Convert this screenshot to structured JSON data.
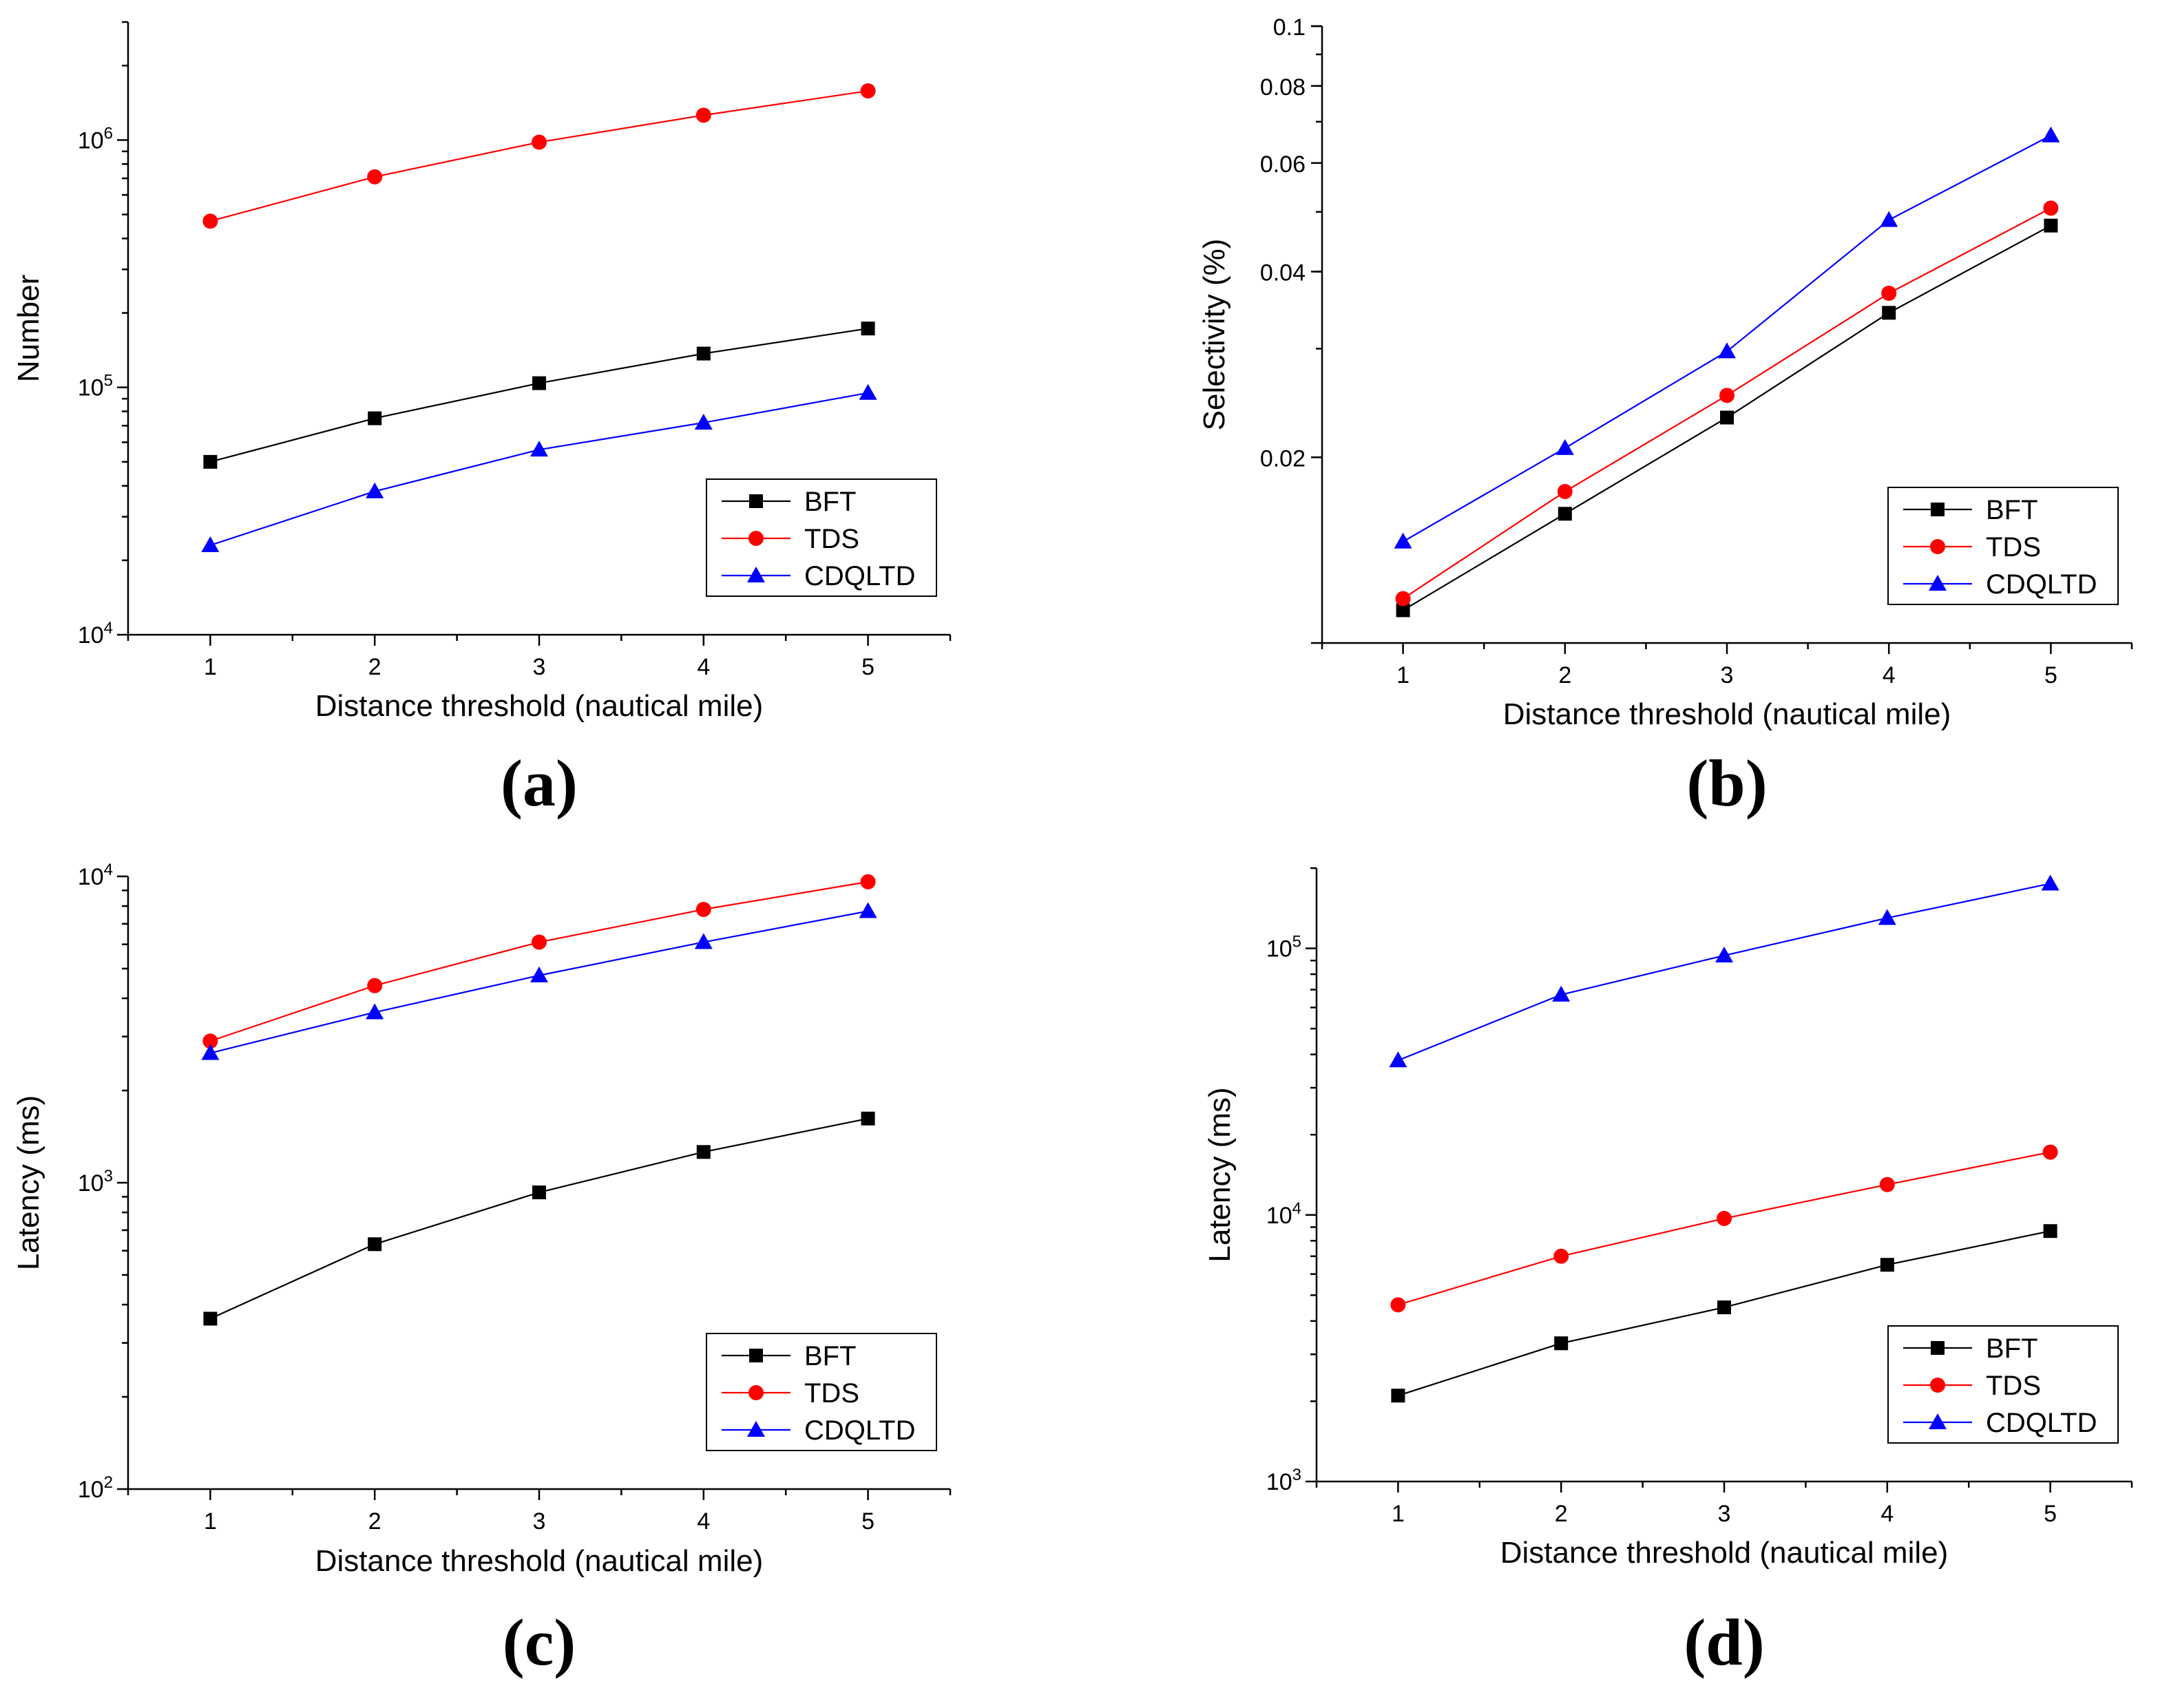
{
  "chart_data": [
    {
      "id": "a",
      "type": "line",
      "panel_label": "(a)",
      "xlabel": "Distance threshold (nautical mile)",
      "ylabel": "Number",
      "yscale": "log",
      "x": [
        1,
        2,
        3,
        4,
        5
      ],
      "xlim": [
        0.5,
        5.5
      ],
      "ylim": [
        10000,
        3000000
      ],
      "yticks": [
        {
          "value": 10000,
          "base": "10",
          "exp": "4"
        },
        {
          "value": 100000,
          "base": "10",
          "exp": "5"
        },
        {
          "value": 1000000,
          "base": "10",
          "exp": "6"
        }
      ],
      "legend_position": "bottom-right",
      "series": [
        {
          "name": "BFT",
          "color": "#000000",
          "marker": "square",
          "values": [
            50000,
            75000,
            104000,
            137000,
            173000
          ]
        },
        {
          "name": "TDS",
          "color": "#ff0000",
          "marker": "circle",
          "values": [
            470000,
            710000,
            980000,
            1260000,
            1580000
          ]
        },
        {
          "name": "CDQLTD",
          "color": "#0000ff",
          "marker": "triangle",
          "values": [
            23000,
            38000,
            56000,
            72000,
            95000
          ]
        }
      ]
    },
    {
      "id": "b",
      "type": "line",
      "panel_label": "(b)",
      "xlabel": "Distance threshold (nautical mile)",
      "ylabel": "Selectivity (%)",
      "yscale": "log",
      "x": [
        1,
        2,
        3,
        4,
        5
      ],
      "xlim": [
        0.5,
        5.5
      ],
      "ylim": [
        0.01,
        0.1
      ],
      "yticks": [
        {
          "value": 0.02,
          "label": "0.02"
        },
        {
          "value": 0.04,
          "label": "0.04"
        },
        {
          "value": 0.06,
          "label": "0.06"
        },
        {
          "value": 0.08,
          "label": "0.08"
        },
        {
          "value": 0.1,
          "label": "0.1"
        }
      ],
      "legend_position": "bottom-right",
      "series": [
        {
          "name": "BFT",
          "color": "#000000",
          "marker": "square",
          "values": [
            0.0113,
            0.0162,
            0.0232,
            0.0343,
            0.0475
          ]
        },
        {
          "name": "TDS",
          "color": "#ff0000",
          "marker": "circle",
          "values": [
            0.0118,
            0.0176,
            0.0252,
            0.0369,
            0.0507
          ]
        },
        {
          "name": "CDQLTD",
          "color": "#0000ff",
          "marker": "triangle",
          "values": [
            0.0146,
            0.0207,
            0.0297,
            0.0485,
            0.0665
          ]
        }
      ]
    },
    {
      "id": "c",
      "type": "line",
      "panel_label": "(c)",
      "xlabel": "Distance threshold (nautical mile)",
      "ylabel": "Latency (ms)",
      "yscale": "log",
      "x": [
        1,
        2,
        3,
        4,
        5
      ],
      "xlim": [
        0.5,
        5.5
      ],
      "ylim": [
        100,
        10000
      ],
      "yticks": [
        {
          "value": 100,
          "base": "10",
          "exp": "2"
        },
        {
          "value": 1000,
          "base": "10",
          "exp": "3"
        },
        {
          "value": 10000,
          "base": "10",
          "exp": "4"
        }
      ],
      "legend_position": "bottom-right",
      "series": [
        {
          "name": "BFT",
          "color": "#000000",
          "marker": "square",
          "values": [
            360,
            630,
            930,
            1260,
            1620
          ]
        },
        {
          "name": "TDS",
          "color": "#ff0000",
          "marker": "circle",
          "values": [
            2900,
            4400,
            6100,
            7800,
            9600
          ]
        },
        {
          "name": "CDQLTD",
          "color": "#0000ff",
          "marker": "triangle",
          "values": [
            2650,
            3600,
            4750,
            6100,
            7700
          ]
        }
      ]
    },
    {
      "id": "d",
      "type": "line",
      "panel_label": "(d)",
      "xlabel": "Distance threshold (nautical mile)",
      "ylabel": "Latency (ms)",
      "yscale": "log",
      "x": [
        1,
        2,
        3,
        4,
        5
      ],
      "xlim": [
        0.5,
        5.5
      ],
      "ylim": [
        1000,
        200000
      ],
      "yticks": [
        {
          "value": 1000,
          "base": "10",
          "exp": "3"
        },
        {
          "value": 10000,
          "base": "10",
          "exp": "4"
        },
        {
          "value": 100000,
          "base": "10",
          "exp": "5"
        }
      ],
      "legend_position": "bottom-right",
      "series": [
        {
          "name": "BFT",
          "color": "#000000",
          "marker": "square",
          "values": [
            2100,
            3300,
            4500,
            6500,
            8700
          ]
        },
        {
          "name": "TDS",
          "color": "#ff0000",
          "marker": "circle",
          "values": [
            4600,
            7000,
            9700,
            13000,
            17200
          ]
        },
        {
          "name": "CDQLTD",
          "color": "#0000ff",
          "marker": "triangle",
          "values": [
            38000,
            67000,
            94000,
            130000,
            175000
          ]
        }
      ]
    }
  ]
}
